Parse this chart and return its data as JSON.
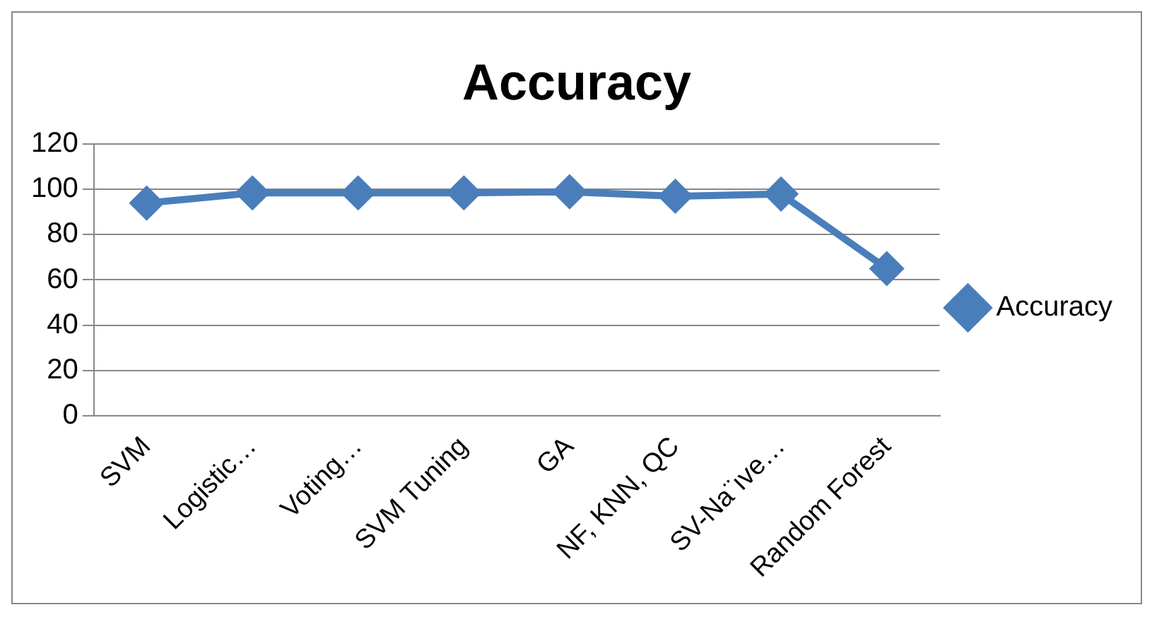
{
  "chart_data": {
    "type": "line",
    "title": "Accuracy",
    "categories": [
      "SVM",
      "Logistic…",
      "Voting…",
      "SVM Tuning",
      "GA",
      "NF, KNN, QC",
      "SV-Na¨ıve…",
      "Random Forest"
    ],
    "series": [
      {
        "name": "Accuracy",
        "color": "#4a7ebb",
        "values": [
          94,
          98.5,
          98.5,
          98.5,
          99,
          97,
          98,
          65
        ]
      }
    ],
    "ylim": [
      0,
      120
    ],
    "yticks": [
      0,
      20,
      40,
      60,
      80,
      100,
      120
    ],
    "grid": "y",
    "legend": "right",
    "marker": "diamond",
    "line_style": "solid"
  }
}
